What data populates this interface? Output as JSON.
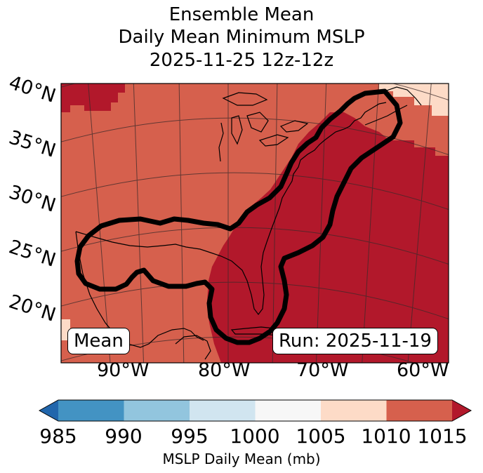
{
  "title": {
    "line1": "Ensemble Mean",
    "line2": "Daily Mean Minimum MSLP",
    "line3": "2025-11-25 12z-12z"
  },
  "lat_labels": [
    "40°N",
    "35°N",
    "30°N",
    "25°N",
    "20°N"
  ],
  "lon_labels": [
    "90°W",
    "80°W",
    "70°W",
    "60°W"
  ],
  "mean_box": "Mean",
  "run_box": "Run: 2025-11-19",
  "colorbar": {
    "ticks": [
      "985",
      "990",
      "995",
      "1000",
      "1005",
      "1010",
      "1015"
    ],
    "label": "MSLP Daily Mean (mb)",
    "colors": [
      "#2166ac",
      "#4393c3",
      "#92c5de",
      "#d1e5f0",
      "#f7f7f7",
      "#fddbc7",
      "#d6604d",
      "#b2182b"
    ]
  }
}
